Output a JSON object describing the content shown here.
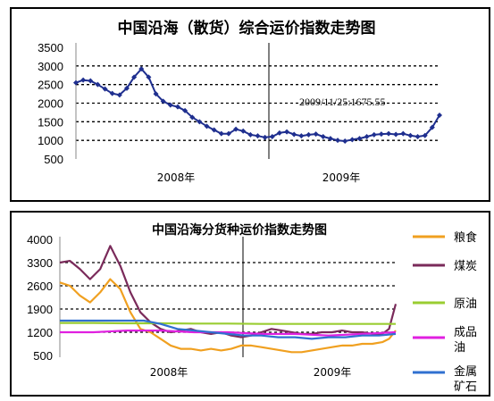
{
  "chart_data": [
    {
      "type": "line",
      "title": "中国沿海（散货）综合运价指数走势图",
      "yticks": [
        "3500",
        "3000",
        "2500",
        "2000",
        "1500",
        "1000",
        "500"
      ],
      "ylim": [
        500,
        3500
      ],
      "x_category_labels": [
        "2008年",
        "2009年"
      ],
      "annotation": "2009/11/25:1675.55",
      "grid": true,
      "series": [
        {
          "color": "#1f2f8f",
          "marker": "diamond",
          "x": [
            0,
            2,
            4,
            6,
            8,
            10,
            12,
            14,
            16,
            18,
            20,
            22,
            24,
            26,
            28,
            30,
            32,
            34,
            36,
            38,
            40,
            42,
            44,
            46,
            48,
            50,
            52,
            54,
            56,
            58,
            60,
            62,
            64,
            66,
            68,
            70,
            72,
            74,
            76,
            78,
            80,
            82,
            84,
            86,
            88,
            90,
            92,
            94,
            96,
            98,
            100
          ],
          "values": [
            2550,
            2620,
            2600,
            2500,
            2380,
            2260,
            2220,
            2400,
            2700,
            2920,
            2700,
            2250,
            2050,
            1950,
            1900,
            1800,
            1620,
            1500,
            1380,
            1280,
            1180,
            1180,
            1300,
            1250,
            1150,
            1120,
            1080,
            1100,
            1200,
            1230,
            1160,
            1120,
            1150,
            1170,
            1100,
            1050,
            1000,
            980,
            1020,
            1050,
            1100,
            1150,
            1170,
            1180,
            1160,
            1180,
            1130,
            1100,
            1130,
            1350,
            1675.55
          ]
        }
      ]
    },
    {
      "type": "line",
      "title": "中国沿海分货种运价指数走势图",
      "yticks": [
        "4000",
        "3300",
        "2600",
        "1900",
        "1200",
        "500"
      ],
      "ylim": [
        500,
        4000
      ],
      "x_category_labels": [
        "2008年",
        "2009年"
      ],
      "legend_position": "right",
      "grid": true,
      "series": [
        {
          "name": "粮食",
          "color": "#f0a020",
          "x": [
            0,
            3,
            6,
            9,
            12,
            15,
            18,
            21,
            24,
            27,
            30,
            33,
            36,
            39,
            42,
            45,
            48,
            51,
            54,
            57,
            60,
            63,
            66,
            69,
            72,
            75,
            78,
            81,
            84,
            87,
            90,
            93,
            96,
            98,
            100
          ],
          "values": [
            2700,
            2600,
            2300,
            2100,
            2400,
            2800,
            2500,
            1800,
            1300,
            1200,
            1000,
            800,
            700,
            700,
            650,
            700,
            650,
            700,
            800,
            800,
            750,
            700,
            650,
            600,
            600,
            650,
            700,
            750,
            800,
            800,
            850,
            850,
            900,
            1000,
            1250
          ]
        },
        {
          "name": "煤炭",
          "color": "#7a2a5a",
          "x": [
            0,
            3,
            6,
            9,
            12,
            15,
            18,
            21,
            24,
            27,
            30,
            33,
            36,
            39,
            42,
            45,
            48,
            51,
            54,
            57,
            60,
            63,
            66,
            69,
            72,
            75,
            78,
            81,
            84,
            87,
            90,
            93,
            96,
            98,
            100
          ],
          "values": [
            3300,
            3350,
            3100,
            2800,
            3100,
            3800,
            3200,
            2400,
            1800,
            1500,
            1300,
            1200,
            1250,
            1300,
            1200,
            1150,
            1200,
            1100,
            1050,
            1100,
            1200,
            1300,
            1250,
            1200,
            1150,
            1150,
            1200,
            1200,
            1250,
            1200,
            1200,
            1150,
            1150,
            1300,
            2050
          ]
        },
        {
          "name": "原油",
          "color": "#9acd32",
          "x": [
            0,
            10,
            20,
            30,
            40,
            50,
            60,
            70,
            80,
            90,
            100
          ],
          "values": [
            1480,
            1480,
            1470,
            1470,
            1460,
            1460,
            1450,
            1450,
            1450,
            1450,
            1450
          ]
        },
        {
          "name": "成品油",
          "color": "#e020e0",
          "x": [
            0,
            10,
            20,
            30,
            40,
            50,
            60,
            70,
            80,
            90,
            100
          ],
          "values": [
            1200,
            1200,
            1250,
            1250,
            1200,
            1200,
            1150,
            1150,
            1100,
            1150,
            1200
          ]
        },
        {
          "name": "金属矿石",
          "color": "#3070d0",
          "x": [
            0,
            5,
            10,
            15,
            20,
            25,
            30,
            35,
            40,
            45,
            50,
            55,
            60,
            65,
            70,
            75,
            80,
            85,
            90,
            95,
            100
          ],
          "values": [
            1550,
            1550,
            1550,
            1550,
            1550,
            1550,
            1450,
            1300,
            1250,
            1200,
            1150,
            1100,
            1100,
            1050,
            1050,
            1000,
            1050,
            1050,
            1100,
            1100,
            1150
          ]
        }
      ]
    }
  ],
  "legend": [
    {
      "label": "粮食",
      "color": "#f0a020"
    },
    {
      "label": "煤炭",
      "color": "#7a2a5a"
    },
    {
      "label": "原油",
      "color": "#9acd32"
    },
    {
      "label": "成品\n油",
      "line1": "成品",
      "line2": "油",
      "color": "#e020e0"
    },
    {
      "label": "金属\n矿石",
      "line1": "金属",
      "line2": "矿石",
      "color": "#3070d0"
    }
  ]
}
